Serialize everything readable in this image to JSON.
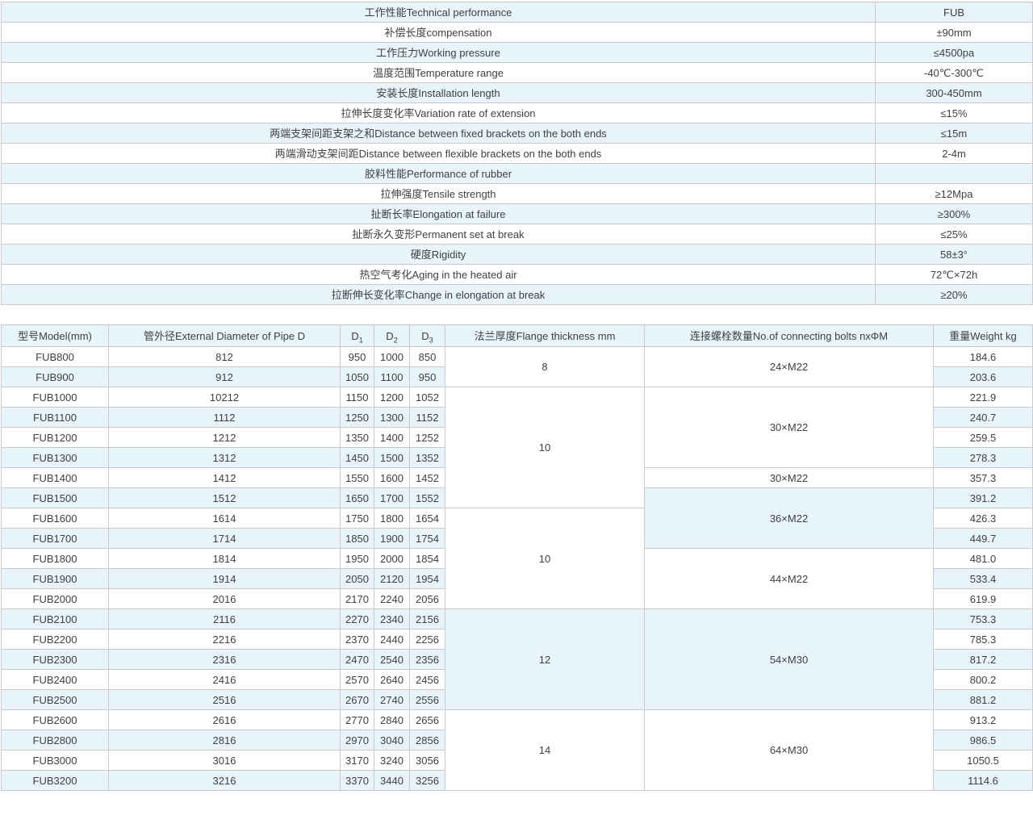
{
  "colors": {
    "stripe_blue": "#e8f4fb",
    "border_gray": "#cacaca",
    "text": "#404040",
    "background": "#ffffff"
  },
  "performance_table": {
    "rows": [
      {
        "label": "工作性能Technical performance",
        "value": "FUB"
      },
      {
        "label": "补偿长度compensation",
        "value": "±90mm"
      },
      {
        "label": "工作压力Working pressure",
        "value": "≤4500pa"
      },
      {
        "label": "温度范围Temperature range",
        "value": "-40℃-300℃"
      },
      {
        "label": "安装长度Installation length",
        "value": "300-450mm"
      },
      {
        "label": "拉伸长度变化率Variation rate of extension",
        "value": "≤15%"
      },
      {
        "label": "两端支架间距支架之和Distance between fixed brackets on the both ends",
        "value": "≤15m"
      },
      {
        "label": "两端滑动支架间距Distance between flexible brackets on the both ends",
        "value": "2-4m"
      },
      {
        "label": "胶料性能Performance of rubber",
        "value": ""
      },
      {
        "label": "拉伸强度Tensile strength",
        "value": "≥12Mpa"
      },
      {
        "label": "扯断长率Elongation at failure",
        "value": "≥300%"
      },
      {
        "label": "扯断永久变形Permanent set at break",
        "value": "≤25%"
      },
      {
        "label": "硬度Rigidity",
        "value": "58±3°"
      },
      {
        "label": "热空气考化Aging in the heated air",
        "value": "72℃×72h"
      },
      {
        "label": "拉断伸长变化率Change in elongation at break",
        "value": "≥20%"
      }
    ]
  },
  "spec_table": {
    "columns": [
      {
        "label": "型号Model(mm)"
      },
      {
        "label": "管外径External Diameter of Pipe D"
      },
      {
        "label": "D",
        "sub": "1"
      },
      {
        "label": "D",
        "sub": "2"
      },
      {
        "label": "D",
        "sub": "3"
      },
      {
        "label": "法兰厚度Flange thickness mm"
      },
      {
        "label": "连接螺栓数量No.of connecting bolts nxΦM"
      },
      {
        "label": "重量Weight kg"
      }
    ],
    "rows": [
      {
        "model": "FUB800",
        "pipe_d": "812",
        "d1": "950",
        "d2": "1000",
        "d3": "850",
        "flange": {
          "value": "8",
          "span": 2
        },
        "bolts": {
          "value": "24×M22",
          "span": 2
        },
        "weight": "184.6"
      },
      {
        "model": "FUB900",
        "pipe_d": "912",
        "d1": "1050",
        "d2": "1100",
        "d3": "950",
        "weight": "203.6"
      },
      {
        "model": "FUB1000",
        "pipe_d": "10212",
        "d1": "1150",
        "d2": "1200",
        "d3": "1052",
        "flange": {
          "value": "10",
          "span": 6
        },
        "bolts": {
          "value": "30×M22",
          "span": 4
        },
        "weight": "221.9"
      },
      {
        "model": "FUB1100",
        "pipe_d": "1112",
        "d1": "1250",
        "d2": "1300",
        "d3": "1152",
        "weight": "240.7"
      },
      {
        "model": "FUB1200",
        "pipe_d": "1212",
        "d1": "1350",
        "d2": "1400",
        "d3": "1252",
        "weight": "259.5"
      },
      {
        "model": "FUB1300",
        "pipe_d": "1312",
        "d1": "1450",
        "d2": "1500",
        "d3": "1352",
        "weight": "278.3"
      },
      {
        "model": "FUB1400",
        "pipe_d": "1412",
        "d1": "1550",
        "d2": "1600",
        "d3": "1452",
        "bolts": {
          "value": "30×M22",
          "span": 1
        },
        "weight": "357.3"
      },
      {
        "model": "FUB1500",
        "pipe_d": "1512",
        "d1": "1650",
        "d2": "1700",
        "d3": "1552",
        "bolts": {
          "value": "36×M22",
          "span": 3
        },
        "weight": "391.2"
      },
      {
        "model": "FUB1600",
        "pipe_d": "1614",
        "d1": "1750",
        "d2": "1800",
        "d3": "1654",
        "flange": {
          "value": "10",
          "span": 5
        },
        "weight": "426.3"
      },
      {
        "model": "FUB1700",
        "pipe_d": "1714",
        "d1": "1850",
        "d2": "1900",
        "d3": "1754",
        "weight": "449.7"
      },
      {
        "model": "FUB1800",
        "pipe_d": "1814",
        "d1": "1950",
        "d2": "2000",
        "d3": "1854",
        "bolts": {
          "value": "44×M22",
          "span": 3
        },
        "weight": "481.0"
      },
      {
        "model": "FUB1900",
        "pipe_d": "1914",
        "d1": "2050",
        "d2": "2120",
        "d3": "1954",
        "weight": "533.4"
      },
      {
        "model": "FUB2000",
        "pipe_d": "2016",
        "d1": "2170",
        "d2": "2240",
        "d3": "2056",
        "weight": "619.9"
      },
      {
        "model": "FUB2100",
        "pipe_d": "2116",
        "d1": "2270",
        "d2": "2340",
        "d3": "2156",
        "flange": {
          "value": "12",
          "span": 5
        },
        "bolts": {
          "value": "54×M30",
          "span": 5
        },
        "weight": "753.3"
      },
      {
        "model": "FUB2200",
        "pipe_d": "2216",
        "d1": "2370",
        "d2": "2440",
        "d3": "2256",
        "weight": "785.3"
      },
      {
        "model": "FUB2300",
        "pipe_d": "2316",
        "d1": "2470",
        "d2": "2540",
        "d3": "2356",
        "weight": "817.2"
      },
      {
        "model": "FUB2400",
        "pipe_d": "2416",
        "d1": "2570",
        "d2": "2640",
        "d3": "2456",
        "weight": "800.2"
      },
      {
        "model": "FUB2500",
        "pipe_d": "2516",
        "d1": "2670",
        "d2": "2740",
        "d3": "2556",
        "weight": "881.2"
      },
      {
        "model": "FUB2600",
        "pipe_d": "2616",
        "d1": "2770",
        "d2": "2840",
        "d3": "2656",
        "flange": {
          "value": "14",
          "span": 4
        },
        "bolts": {
          "value": "64×M30",
          "span": 4
        },
        "weight": "913.2"
      },
      {
        "model": "FUB2800",
        "pipe_d": "2816",
        "d1": "2970",
        "d2": "3040",
        "d3": "2856",
        "weight": "986.5"
      },
      {
        "model": "FUB3000",
        "pipe_d": "3016",
        "d1": "3170",
        "d2": "3240",
        "d3": "3056",
        "weight": "1050.5"
      },
      {
        "model": "FUB3200",
        "pipe_d": "3216",
        "d1": "3370",
        "d2": "3440",
        "d3": "3256",
        "weight": "1114.6"
      }
    ]
  }
}
